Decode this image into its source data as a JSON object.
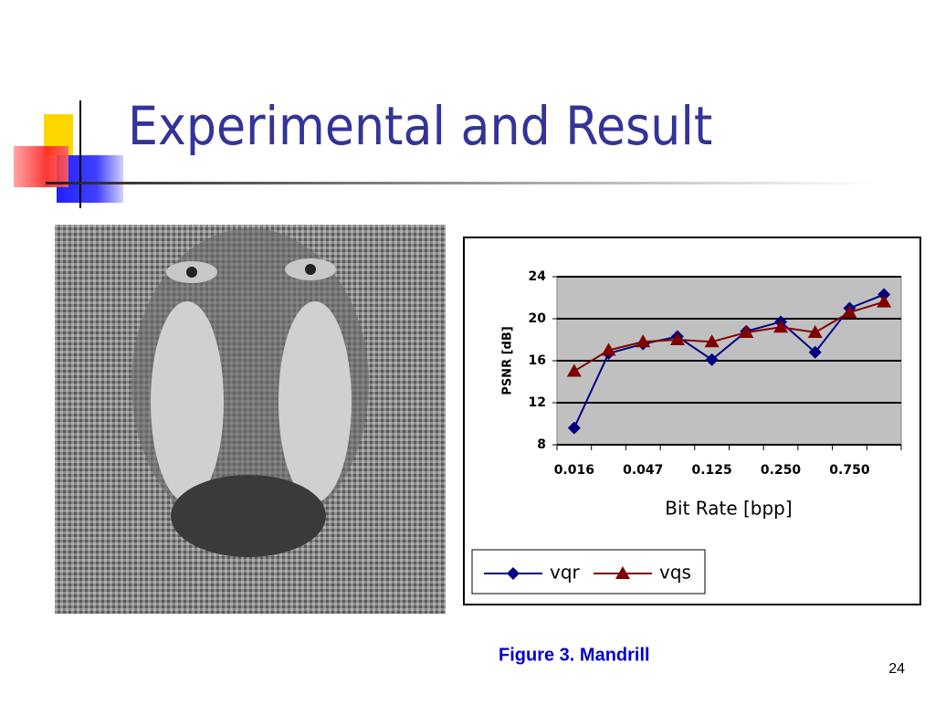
{
  "slide": {
    "title": "Experimental and Result",
    "caption": "Figure 3. Mandrill",
    "page_number": "24"
  },
  "chart_data": {
    "type": "line",
    "x_label": "Bit Rate [bpp]",
    "y_label": "PSNR [dB]",
    "categories": [
      "0.016",
      null,
      "0.047",
      null,
      "0.125",
      null,
      "0.250",
      null,
      "0.750",
      null
    ],
    "series": [
      {
        "name": "vqr",
        "color": "#000080",
        "marker": "diamond",
        "values": [
          9.6,
          16.7,
          17.6,
          18.3,
          16.1,
          18.8,
          19.7,
          16.8,
          21.0,
          22.3
        ]
      },
      {
        "name": "vqs",
        "color": "#800000",
        "marker": "triangle",
        "values": [
          15.0,
          17.0,
          17.8,
          18.0,
          17.8,
          18.7,
          19.2,
          18.7,
          20.6,
          21.6
        ]
      }
    ],
    "ylim": [
      8,
      24
    ],
    "yticks": [
      8,
      12,
      16,
      20,
      24
    ],
    "grid": true,
    "legend": "bottom"
  }
}
